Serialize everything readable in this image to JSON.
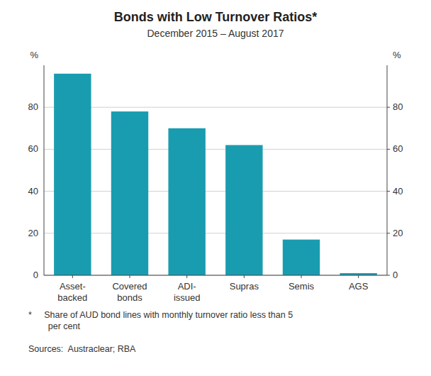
{
  "chart_data": {
    "type": "bar",
    "title": "Bonds with Low Turnover Ratios*",
    "subtitle": "December 2015 – August 2017",
    "categories": [
      "Asset-\nbacked",
      "Covered\nbonds",
      "ADI-\nissued",
      "Supras",
      "Semis",
      "AGS"
    ],
    "values": [
      96,
      78,
      70,
      62,
      17,
      1
    ],
    "color": "#1a9cb0",
    "ylim": [
      0,
      100
    ],
    "yticks": [
      0,
      20,
      40,
      60,
      80
    ],
    "y2lim": [
      0,
      100
    ],
    "y2ticks": [
      0,
      20,
      40,
      60,
      80
    ],
    "ylabel": "%",
    "y2label": "%",
    "grid": true,
    "footnotes": [
      "*     Share of AUD bond lines with monthly turnover ratio less than 5\n        per cent",
      "Sources:  Austraclear; RBA"
    ]
  }
}
